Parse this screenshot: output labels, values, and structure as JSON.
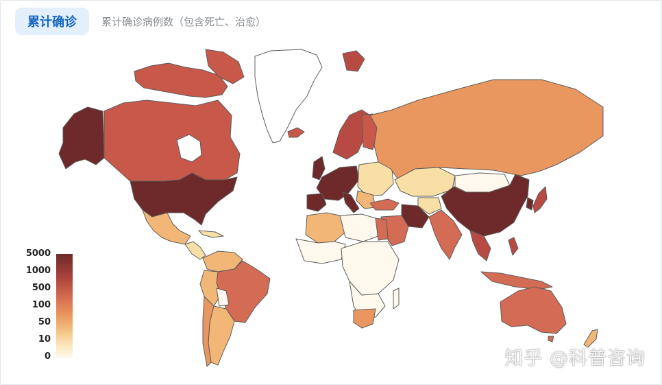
{
  "header": {
    "active_tab": "累计确诊",
    "subtitle": "累计确诊病例数（包含死亡、治愈）"
  },
  "legend": {
    "labels": [
      "5000",
      "1000",
      "500",
      "100",
      "50",
      "10",
      "0"
    ]
  },
  "colors": {
    "level_5000": "#6e2a2a",
    "level_1000": "#b84a44",
    "level_500": "#d46b54",
    "level_100": "#e9965f",
    "level_50": "#f2b777",
    "level_10": "#f8dfa6",
    "level_0": "#fff8ec",
    "active_tab_bg": "#e3f0fb",
    "active_tab_text": "#1565c0"
  },
  "watermark": "知乎 @科普咨询"
}
